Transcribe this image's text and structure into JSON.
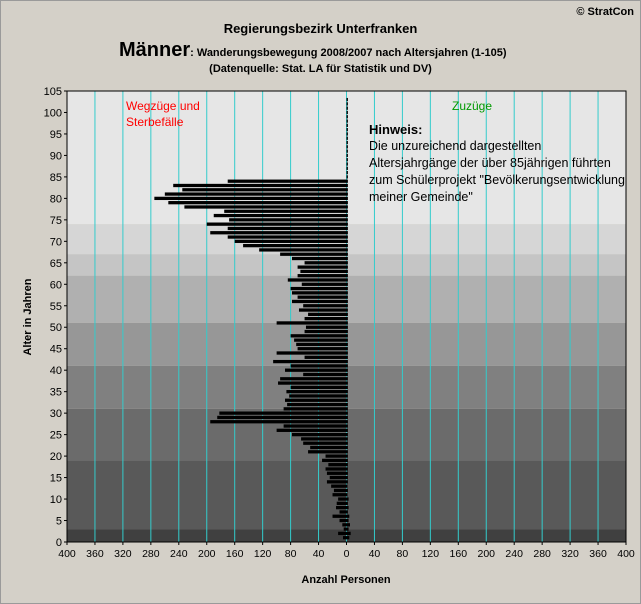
{
  "header": {
    "copyright": "© StratCon",
    "title": "Regierungsbezirk Unterfranken",
    "subtitle_big": "Männer",
    "subtitle_rest": ": Wanderungsbewegung 2008/2007 nach Altersjahren (1-105)",
    "source": "(Datenquelle: Stat. LA für Statistik und DV)"
  },
  "note": {
    "heading": "Hinweis:",
    "text": "Die unzureichend dargestellten Altersjahrgänge der über 85jährigen führten zum Schülerprojekt \"Bevölkerungsentwicklung meiner Gemeinde\""
  },
  "colors": {
    "bars": "#000000",
    "grid_vertical": "#33cccc",
    "label_left": "#ff0000",
    "label_right": "#009900",
    "bands": [
      "#404040",
      "#595959",
      "#6b6b6b",
      "#808080",
      "#979797",
      "#b0b0b0",
      "#c5c5c5",
      "#d6d6d6",
      "#e6e6e6"
    ]
  },
  "chart_data": {
    "type": "bar",
    "orientation": "horizontal",
    "title": "Regierungsbezirk Unterfranken",
    "xlabel": "Anzahl Personen",
    "ylabel": "Alter in Jahren",
    "xlim": [
      -400,
      400
    ],
    "ylim": [
      0,
      105
    ],
    "x_tick_values": [
      -400,
      -360,
      -320,
      -280,
      -240,
      -200,
      -160,
      -120,
      -80,
      -40,
      0,
      40,
      80,
      120,
      160,
      200,
      240,
      280,
      320,
      360,
      400
    ],
    "x_tick_labels": [
      "400",
      "360",
      "320",
      "280",
      "240",
      "200",
      "160",
      "120",
      "80",
      "40",
      "0",
      "40",
      "80",
      "120",
      "160",
      "200",
      "240",
      "280",
      "320",
      "360",
      "400"
    ],
    "y_tick_values": [
      0,
      5,
      10,
      15,
      20,
      25,
      30,
      35,
      40,
      45,
      50,
      55,
      60,
      65,
      70,
      75,
      80,
      85,
      90,
      95,
      100,
      105
    ],
    "y_tick_labels": [
      "0",
      "5",
      "10",
      "15",
      "20",
      "25",
      "30",
      "35",
      "40",
      "45",
      "50",
      "55",
      "60",
      "65",
      "70",
      "75",
      "80",
      "85",
      "90",
      "95",
      "100",
      "105"
    ],
    "region_labels": {
      "left": [
        "Wegzüge und",
        "Sterbefälle"
      ],
      "right": "Zuzüge"
    },
    "band_edges": [
      0,
      3,
      19,
      31,
      41,
      51,
      62,
      67,
      74,
      105
    ],
    "ages": [
      1,
      2,
      3,
      4,
      5,
      6,
      7,
      8,
      9,
      10,
      11,
      12,
      13,
      14,
      15,
      16,
      17,
      18,
      19,
      20,
      21,
      22,
      23,
      24,
      25,
      26,
      27,
      28,
      29,
      30,
      31,
      32,
      33,
      34,
      35,
      36,
      37,
      38,
      39,
      40,
      41,
      42,
      43,
      44,
      45,
      46,
      47,
      48,
      49,
      50,
      51,
      52,
      53,
      54,
      55,
      56,
      57,
      58,
      59,
      60,
      61,
      62,
      63,
      64,
      65,
      66,
      67,
      68,
      69,
      70,
      71,
      72,
      73,
      74,
      75,
      76,
      77,
      78,
      79,
      80,
      81,
      82,
      83,
      84,
      85,
      86,
      87,
      88,
      89,
      90,
      91,
      92,
      93,
      94,
      95,
      96,
      97,
      98,
      99,
      100,
      101,
      102,
      103
    ],
    "series": [
      {
        "name": "Wegzüge und Sterbefälle",
        "values": [
          -5,
          -12,
          -4,
          -6,
          -10,
          -20,
          -10,
          -15,
          -14,
          -12,
          -20,
          -18,
          -22,
          -28,
          -24,
          -28,
          -30,
          -26,
          -35,
          -30,
          -55,
          -52,
          -62,
          -65,
          -78,
          -100,
          -90,
          -195,
          -185,
          -182,
          -90,
          -85,
          -88,
          -82,
          -86,
          -80,
          -98,
          -95,
          -62,
          -88,
          -80,
          -105,
          -60,
          -100,
          -70,
          -72,
          -75,
          -80,
          -60,
          -58,
          -100,
          -60,
          -55,
          -68,
          -62,
          -78,
          -70,
          -78,
          -80,
          -64,
          -84,
          -70,
          -66,
          -70,
          -60,
          -78,
          -95,
          -125,
          -148,
          -160,
          -170,
          -195,
          -170,
          -200,
          -168,
          -190,
          -175,
          -232,
          -255,
          -275,
          -260,
          -235,
          -248,
          -170,
          0,
          0,
          0,
          0,
          0,
          0,
          0,
          0,
          0,
          0,
          0,
          0,
          0,
          0,
          0,
          0,
          0,
          0,
          0
        ]
      },
      {
        "name": "Zuzüge",
        "values": [
          4,
          6,
          3,
          5,
          3,
          4,
          2,
          3,
          2,
          3,
          1,
          2,
          1,
          2,
          2,
          2,
          2,
          2,
          2,
          2,
          2,
          2,
          2,
          2,
          2,
          2,
          2,
          2,
          2,
          2,
          2,
          2,
          2,
          2,
          2,
          2,
          2,
          2,
          2,
          2,
          2,
          2,
          2,
          2,
          2,
          2,
          2,
          2,
          2,
          2,
          2,
          2,
          2,
          2,
          2,
          2,
          2,
          2,
          2,
          2,
          2,
          2,
          2,
          2,
          2,
          2,
          2,
          2,
          2,
          2,
          2,
          2,
          2,
          2,
          2,
          2,
          2,
          2,
          2,
          2,
          2,
          2,
          2,
          2,
          2,
          2,
          2,
          2,
          2,
          2,
          2,
          2,
          2,
          2,
          2,
          2,
          2,
          2,
          2,
          2,
          2,
          2,
          2
        ]
      }
    ]
  }
}
